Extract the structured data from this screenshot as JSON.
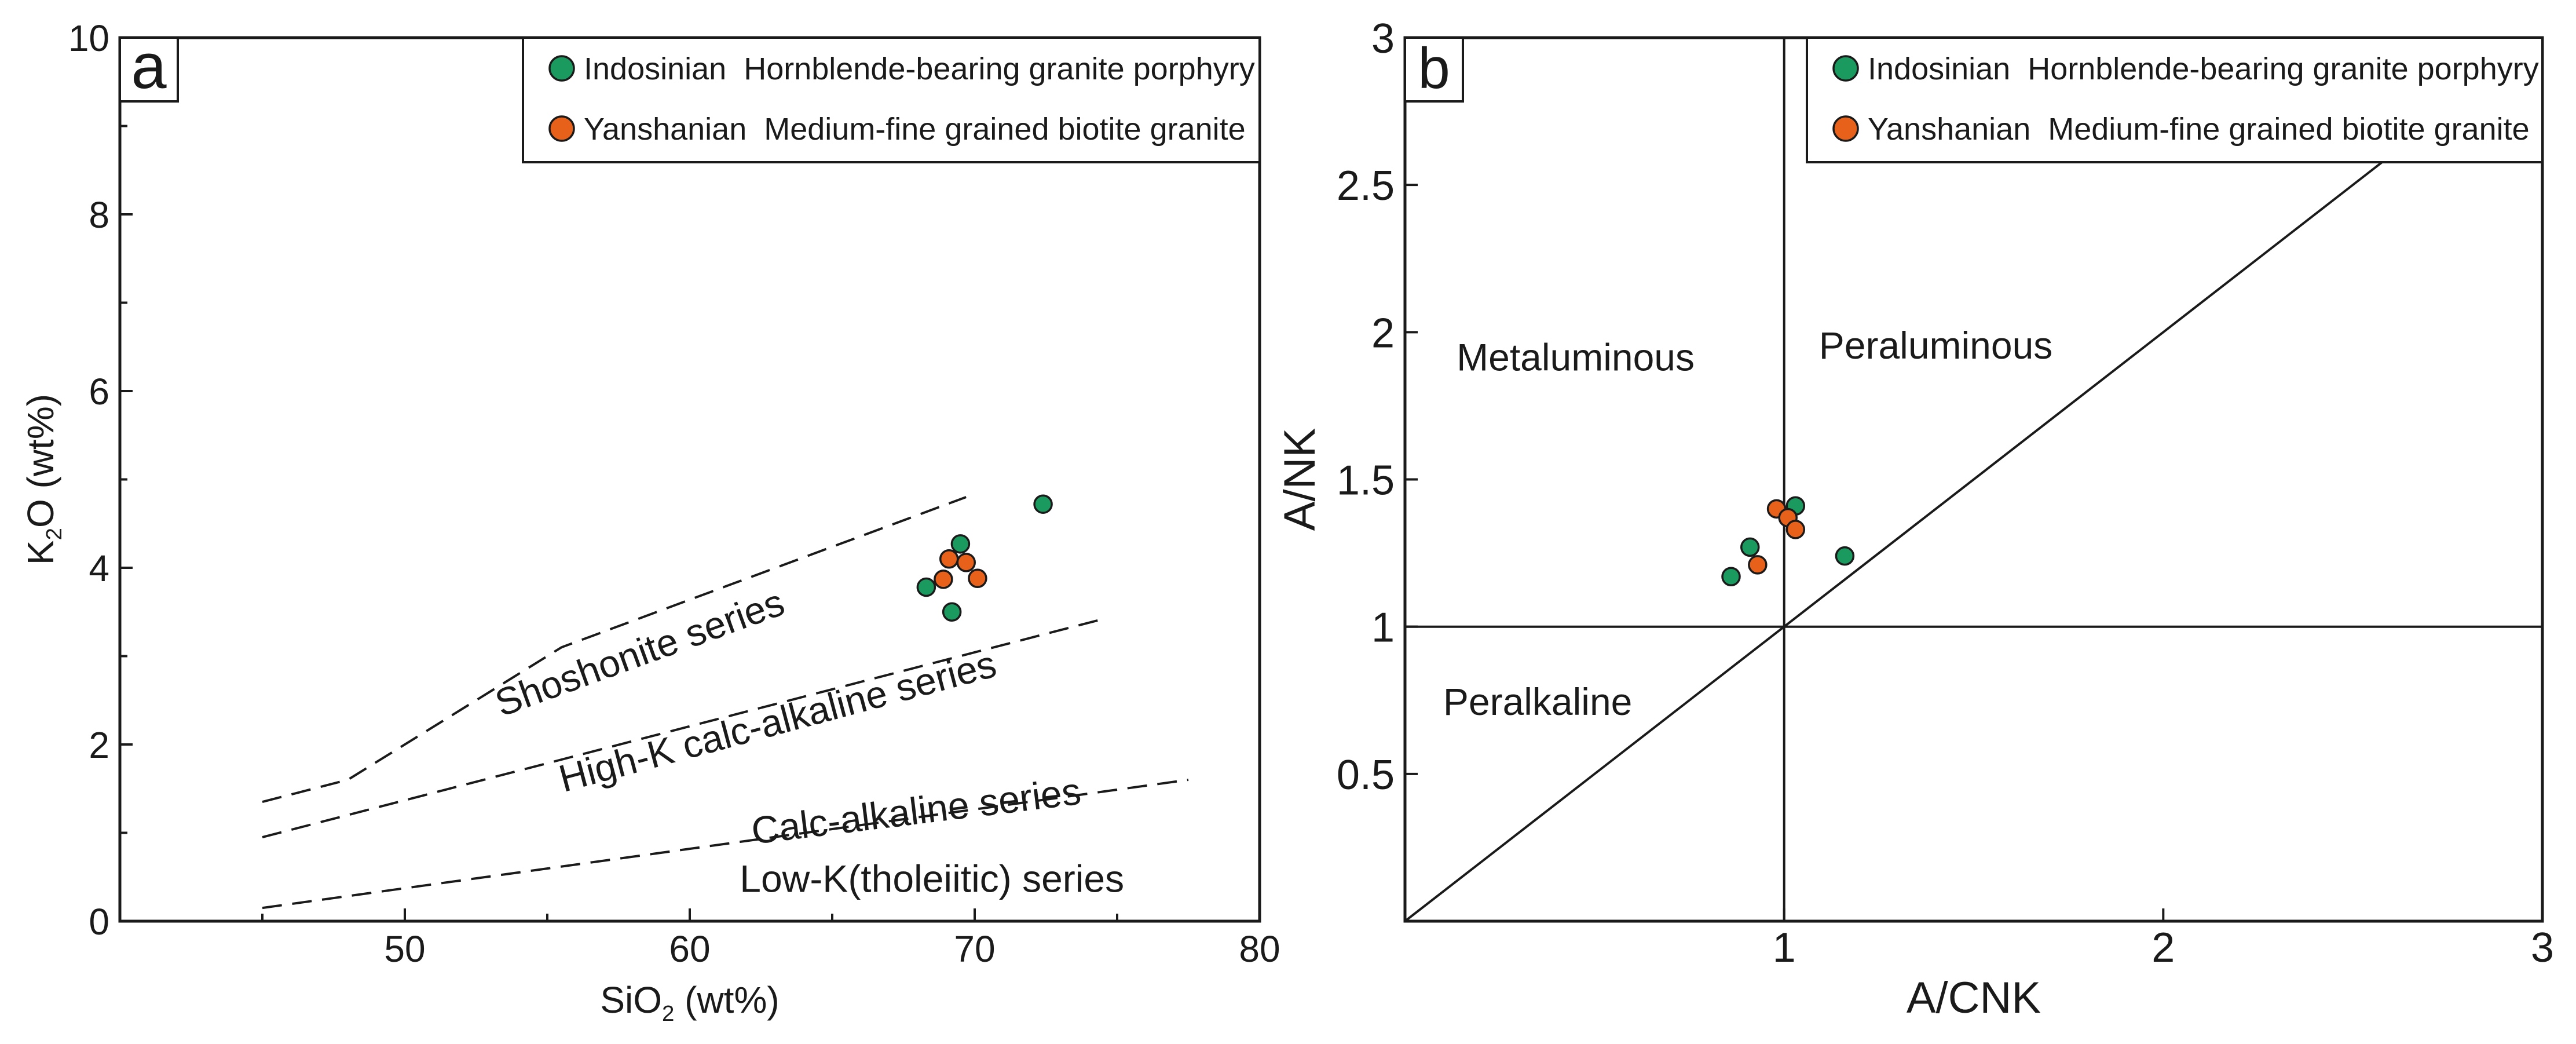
{
  "chart_data": [
    {
      "type": "scatter",
      "panel_label": "a",
      "xlabel": "SiO",
      "xlabel_sub": "2",
      "xlabel_unit": " (wt%)",
      "ylabel": "K",
      "ylabel_sub": "2",
      "ylabel_unit": "O  (wt%)",
      "xlim": [
        40,
        80
      ],
      "ylim": [
        0,
        10
      ],
      "x_ticks": [
        {
          "value": 50,
          "label": "50"
        },
        {
          "value": 60,
          "label": "60"
        },
        {
          "value": 70,
          "label": "70"
        },
        {
          "value": 80,
          "label": "80"
        }
      ],
      "y_ticks": [
        {
          "value": 0,
          "label": "0"
        },
        {
          "value": 2,
          "label": "2"
        },
        {
          "value": 4,
          "label": "4"
        },
        {
          "value": 6,
          "label": "6"
        },
        {
          "value": 8,
          "label": "8"
        },
        {
          "value": 10,
          "label": "10"
        }
      ],
      "legend_position": "top-right",
      "series": [
        {
          "name": "Indosinian  Hornblende-bearing granite porphyry",
          "color": "#1b9a5f",
          "points": [
            {
              "x": 68.3,
              "y": 3.78
            },
            {
              "x": 69.2,
              "y": 3.5
            },
            {
              "x": 69.5,
              "y": 4.27
            },
            {
              "x": 72.4,
              "y": 4.72
            }
          ]
        },
        {
          "name": "Yanshanian  Medium-fine grained biotite granite",
          "color": "#e8611a",
          "points": [
            {
              "x": 68.9,
              "y": 3.87
            },
            {
              "x": 69.1,
              "y": 4.1
            },
            {
              "x": 69.7,
              "y": 4.06
            },
            {
              "x": 70.1,
              "y": 3.88
            }
          ]
        }
      ],
      "boundaries": [
        {
          "name": "shoshonite-boundary",
          "points": [
            [
              45,
              1.35
            ],
            [
              48,
              1.6
            ],
            [
              55.5,
              3.1
            ],
            [
              69.7,
              4.8
            ]
          ]
        },
        {
          "name": "high-k-boundary",
          "points": [
            [
              45,
              0.95
            ],
            [
              74.5,
              3.42
            ]
          ]
        },
        {
          "name": "calc-alkaline-boundary",
          "points": [
            [
              45,
              0.15
            ],
            [
              77.5,
              1.6
            ]
          ]
        }
      ],
      "field_labels": [
        {
          "text": "Shoshonite series",
          "x": 58.4,
          "y": 2.9,
          "angle": -20
        },
        {
          "text": "High-K calc-alkaline series",
          "x": 63.2,
          "y": 2.12,
          "angle": -15
        },
        {
          "text": "Calc-alkaline series",
          "x": 68,
          "y": 1.1,
          "angle": -7
        },
        {
          "text": "Low-K(tholeiitic) series",
          "x": 68.5,
          "y": 0.33,
          "angle": 0
        }
      ]
    },
    {
      "type": "scatter",
      "panel_label": "b",
      "xlabel": "A/CNK",
      "ylabel": "A/NK",
      "xlim": [
        0,
        3
      ],
      "ylim": [
        0,
        3
      ],
      "x_ticks": [
        {
          "value": 1,
          "label": "1"
        },
        {
          "value": 2,
          "label": "2"
        },
        {
          "value": 3,
          "label": "3"
        }
      ],
      "y_ticks": [
        {
          "value": 0.5,
          "label": "0.5"
        },
        {
          "value": 1,
          "label": "1"
        },
        {
          "value": 1.5,
          "label": "1.5"
        },
        {
          "value": 2,
          "label": "2"
        },
        {
          "value": 2.5,
          "label": "2.5"
        },
        {
          "value": 3,
          "label": "3"
        }
      ],
      "legend_position": "top-right",
      "series": [
        {
          "name": "Indosinian  Hornblende-bearing granite porphyry",
          "color": "#1b9a5f",
          "points": [
            {
              "x": 0.86,
              "y": 1.17
            },
            {
              "x": 0.91,
              "y": 1.27
            },
            {
              "x": 1.03,
              "y": 1.41
            },
            {
              "x": 1.16,
              "y": 1.24
            }
          ]
        },
        {
          "name": "Yanshanian  Medium-fine grained biotite granite",
          "color": "#e8611a",
          "points": [
            {
              "x": 0.93,
              "y": 1.21
            },
            {
              "x": 0.98,
              "y": 1.4
            },
            {
              "x": 1.01,
              "y": 1.37
            },
            {
              "x": 1.03,
              "y": 1.33
            }
          ]
        }
      ],
      "reference_lines": [
        {
          "name": "vertical-boundary",
          "points": [
            [
              1,
              0
            ],
            [
              1,
              3
            ]
          ]
        },
        {
          "name": "horizontal-boundary",
          "points": [
            [
              0,
              1
            ],
            [
              3,
              1
            ]
          ]
        },
        {
          "name": "diagonal-boundary",
          "points": [
            [
              0,
              0
            ],
            [
              2.65,
              2.65
            ]
          ]
        }
      ],
      "field_labels": [
        {
          "text": "Metaluminous",
          "x": 0.45,
          "y": 1.87,
          "angle": 0
        },
        {
          "text": "Peraluminous",
          "x": 1.4,
          "y": 1.91,
          "angle": 0
        },
        {
          "text": "Peralkaline",
          "x": 0.35,
          "y": 0.7,
          "angle": 0
        }
      ]
    }
  ]
}
